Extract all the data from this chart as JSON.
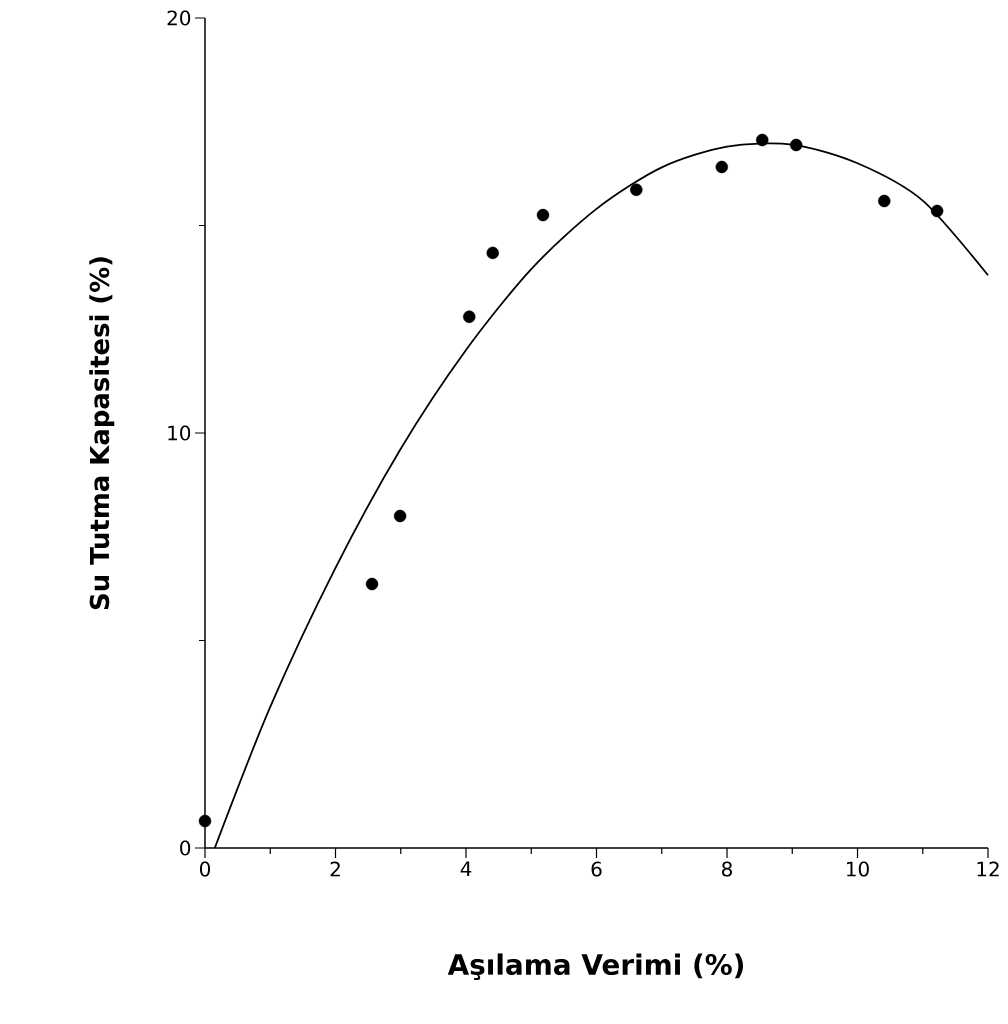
{
  "chart_data": {
    "type": "scatter",
    "xlabel": "Aşılama  Verimi  (%)",
    "ylabel": "Su Tutma Kapasitesi (%)",
    "xlim": [
      0,
      12
    ],
    "ylim": [
      0,
      20
    ],
    "xticks": [
      0,
      2,
      4,
      6,
      8,
      10,
      12
    ],
    "yticks": [
      0,
      10,
      20
    ],
    "series": [
      {
        "color": "#000000",
        "marker": "circle",
        "x": [
          0,
          2.56,
          2.99,
          4.05,
          4.41,
          5.18,
          6.61,
          7.92,
          8.54,
          9.06,
          10.41,
          11.22
        ],
        "values": [
          0.65,
          6.36,
          8.0,
          12.8,
          14.34,
          15.25,
          15.86,
          16.41,
          17.06,
          16.94,
          15.59,
          15.35
        ]
      },
      {
        "type": "line",
        "color": "#000000",
        "marker": "none",
        "x": [
          0.15,
          1,
          2,
          3,
          4,
          5,
          6,
          7,
          8,
          9,
          10,
          11,
          12
        ],
        "values": [
          0,
          3.4,
          6.75,
          9.62,
          12.0,
          13.95,
          15.4,
          16.4,
          16.9,
          16.95,
          16.5,
          15.6,
          13.8
        ]
      }
    ]
  }
}
